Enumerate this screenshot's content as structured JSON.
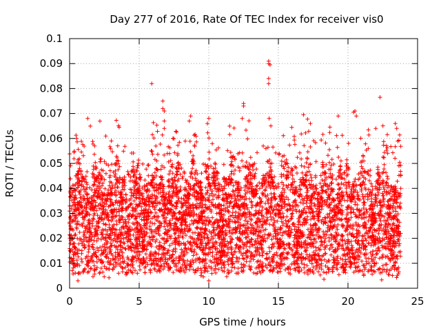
{
  "chart_data": {
    "type": "scatter",
    "title": "Day 277 of 2016, Rate Of TEC Index for receiver vis0",
    "xlabel": "GPS time / hours",
    "ylabel": "ROTI / TECUs",
    "xlim": [
      0,
      25
    ],
    "ylim": [
      0,
      0.1
    ],
    "xticks": [
      0,
      5,
      10,
      15,
      20,
      25
    ],
    "xtick_labels": [
      "0",
      "5",
      "10",
      "15",
      "20",
      "25"
    ],
    "yticks": [
      0,
      0.01,
      0.02,
      0.03,
      0.04,
      0.05,
      0.06,
      0.07,
      0.08,
      0.09,
      0.1
    ],
    "ytick_labels": [
      "0",
      "0.01",
      "0.02",
      "0.03",
      "0.04",
      "0.05",
      "0.06",
      "0.07",
      "0.08",
      "0.09",
      "0.1"
    ],
    "grid": true,
    "marker": "plus",
    "color": "#ff0000",
    "data_range_hours": [
      0,
      23.8
    ],
    "bulk_range": [
      0.005,
      0.045
    ],
    "outliers": [
      {
        "x": 5.9,
        "y": 0.082
      },
      {
        "x": 6.7,
        "y": 0.075
      },
      {
        "x": 6.7,
        "y": 0.072
      },
      {
        "x": 6.8,
        "y": 0.071
      },
      {
        "x": 6.8,
        "y": 0.067
      },
      {
        "x": 6.8,
        "y": 0.064
      },
      {
        "x": 14.3,
        "y": 0.091
      },
      {
        "x": 14.3,
        "y": 0.09
      },
      {
        "x": 14.4,
        "y": 0.0895
      },
      {
        "x": 14.3,
        "y": 0.084
      },
      {
        "x": 14.3,
        "y": 0.082
      },
      {
        "x": 22.3,
        "y": 0.0765
      },
      {
        "x": 12.5,
        "y": 0.074
      },
      {
        "x": 12.5,
        "y": 0.073
      },
      {
        "x": 16.8,
        "y": 0.0695
      },
      {
        "x": 17.3,
        "y": 0.066
      },
      {
        "x": 20.4,
        "y": 0.0705
      },
      {
        "x": 20.5,
        "y": 0.071
      },
      {
        "x": 20.6,
        "y": 0.069
      },
      {
        "x": 19.3,
        "y": 0.069
      },
      {
        "x": 8.7,
        "y": 0.069
      },
      {
        "x": 10.0,
        "y": 0.068
      },
      {
        "x": 1.3,
        "y": 0.068
      },
      {
        "x": 23.4,
        "y": 0.066
      },
      {
        "x": 23.5,
        "y": 0.064
      },
      {
        "x": 22.0,
        "y": 0.064
      },
      {
        "x": 12.4,
        "y": 0.068
      },
      {
        "x": 8.6,
        "y": 0.067
      },
      {
        "x": 9.9,
        "y": 0.066
      },
      {
        "x": 3.0,
        "y": 0.059
      },
      {
        "x": 2.6,
        "y": 0.061
      },
      {
        "x": 0.5,
        "y": 0.06
      },
      {
        "x": 0.6,
        "y": 0.003
      },
      {
        "x": 10.0,
        "y": 0.003
      }
    ]
  }
}
